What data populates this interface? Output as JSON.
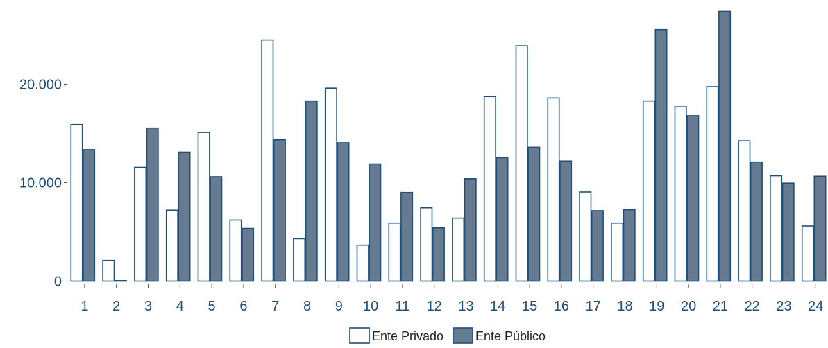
{
  "chart_data": {
    "type": "bar",
    "title": "",
    "xlabel": "",
    "ylabel": "",
    "categories": [
      "1",
      "2",
      "3",
      "4",
      "5",
      "6",
      "7",
      "8",
      "9",
      "10",
      "11",
      "12",
      "13",
      "14",
      "15",
      "16",
      "17",
      "18",
      "19",
      "20",
      "21",
      "22",
      "23",
      "24"
    ],
    "series": [
      {
        "name": "Ente Privado",
        "values": [
          15900,
          2100,
          11550,
          7200,
          15100,
          6200,
          24500,
          4300,
          19600,
          3650,
          5900,
          7450,
          6400,
          18750,
          23900,
          18600,
          9050,
          5900,
          18300,
          17700,
          19750,
          14250,
          10700,
          5600
        ]
      },
      {
        "name": "Ente Público",
        "values": [
          13350,
          50,
          15550,
          13100,
          10600,
          5350,
          14350,
          18300,
          14050,
          11900,
          9000,
          5400,
          10400,
          12550,
          13600,
          12200,
          7150,
          7250,
          25550,
          16800,
          27400,
          12100,
          9950,
          10650
        ]
      }
    ],
    "ylim": [
      0,
      27400
    ],
    "yticks": [
      0,
      10000,
      20000
    ],
    "ytick_labels": [
      "0",
      "10.000",
      "20.000"
    ],
    "grid": false,
    "legend_position": "bottom-center",
    "colors": {
      "Ente Privado_fill": "#ffffff",
      "Ente Público_fill": "#667b90",
      "stroke": "#1f4e79",
      "axis_text": "#1f4e79"
    }
  }
}
